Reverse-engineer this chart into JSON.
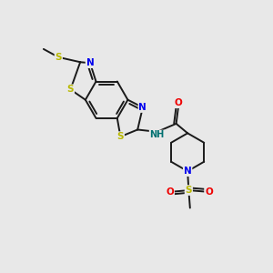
{
  "background_color": "#e8e8e8",
  "bond_color": "#1a1a1a",
  "atom_colors": {
    "S": "#b8b800",
    "N": "#0000ee",
    "O": "#ee0000",
    "C": "#1a1a1a",
    "H": "#007070"
  },
  "figsize": [
    3.0,
    3.0
  ],
  "dpi": 100
}
